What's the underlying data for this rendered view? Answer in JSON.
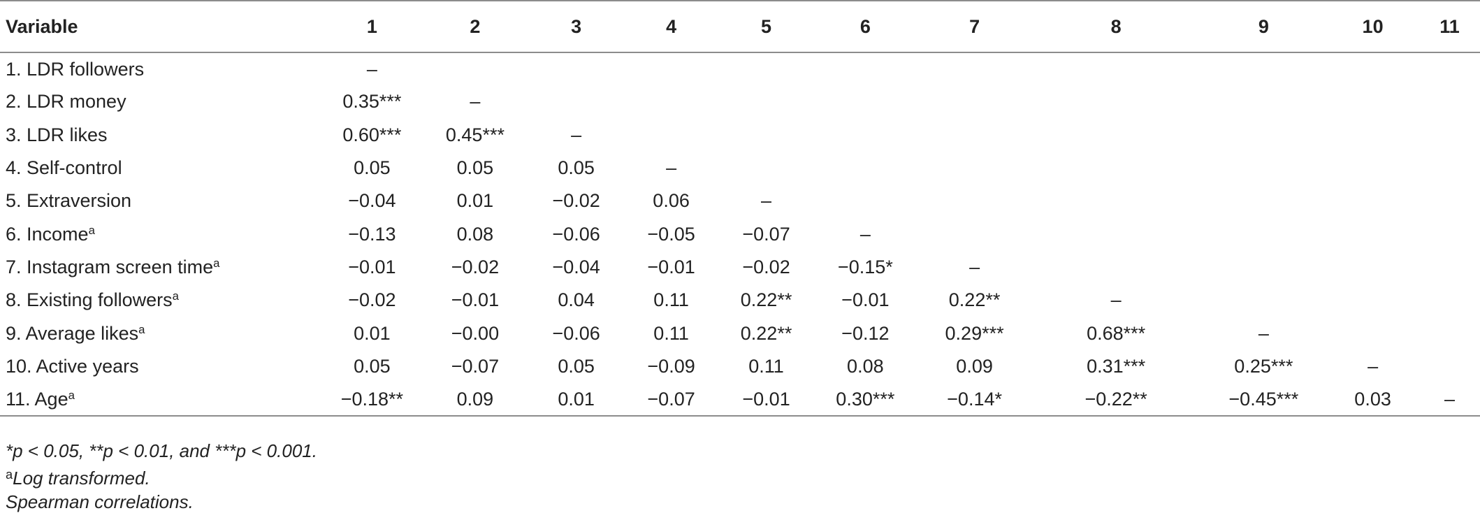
{
  "table": {
    "header": {
      "variable": "Variable",
      "cols": [
        "1",
        "2",
        "3",
        "4",
        "5",
        "6",
        "7",
        "8",
        "9",
        "10",
        "11"
      ]
    },
    "rows": [
      {
        "label": "1. LDR followers",
        "sup": "",
        "values": [
          "–",
          "",
          "",
          "",
          "",
          "",
          "",
          "",
          "",
          "",
          ""
        ]
      },
      {
        "label": "2. LDR money",
        "sup": "",
        "values": [
          "0.35***",
          "–",
          "",
          "",
          "",
          "",
          "",
          "",
          "",
          "",
          ""
        ]
      },
      {
        "label": "3. LDR likes",
        "sup": "",
        "values": [
          "0.60***",
          "0.45***",
          "–",
          "",
          "",
          "",
          "",
          "",
          "",
          "",
          ""
        ]
      },
      {
        "label": "4. Self-control",
        "sup": "",
        "values": [
          "0.05",
          "0.05",
          "0.05",
          "–",
          "",
          "",
          "",
          "",
          "",
          "",
          ""
        ]
      },
      {
        "label": "5. Extraversion",
        "sup": "",
        "values": [
          "−0.04",
          "0.01",
          "−0.02",
          "0.06",
          "–",
          "",
          "",
          "",
          "",
          "",
          ""
        ]
      },
      {
        "label": "6. Income",
        "sup": "a",
        "values": [
          "−0.13",
          "0.08",
          "−0.06",
          "−0.05",
          "−0.07",
          "–",
          "",
          "",
          "",
          "",
          ""
        ]
      },
      {
        "label": "7. Instagram screen time",
        "sup": "a",
        "values": [
          "−0.01",
          "−0.02",
          "−0.04",
          "−0.01",
          "−0.02",
          "−0.15*",
          "–",
          "",
          "",
          "",
          ""
        ]
      },
      {
        "label": "8. Existing followers",
        "sup": "a",
        "values": [
          "−0.02",
          "−0.01",
          "0.04",
          "0.11",
          "0.22**",
          "−0.01",
          "0.22**",
          "–",
          "",
          "",
          ""
        ]
      },
      {
        "label": "9. Average likes",
        "sup": "a",
        "values": [
          "0.01",
          "−0.00",
          "−0.06",
          "0.11",
          "0.22**",
          "−0.12",
          "0.29***",
          "0.68***",
          "–",
          "",
          ""
        ]
      },
      {
        "label": "10. Active years",
        "sup": "",
        "values": [
          "0.05",
          "−0.07",
          "0.05",
          "−0.09",
          "0.11",
          "0.08",
          "0.09",
          "0.31***",
          "0.25***",
          "–",
          ""
        ]
      },
      {
        "label": "11. Age",
        "sup": "a",
        "values": [
          "−0.18**",
          "0.09",
          "0.01",
          "−0.07",
          "−0.01",
          "0.30***",
          "−0.14*",
          "−0.22**",
          "−0.45***",
          "0.03",
          "–"
        ]
      }
    ]
  },
  "notes": {
    "significance": "*p < 0.05, **p < 0.01, and ***p < 0.001.",
    "log_marker": "a",
    "log_text": "Log transformed.",
    "spearman": "Spearman correlations."
  }
}
